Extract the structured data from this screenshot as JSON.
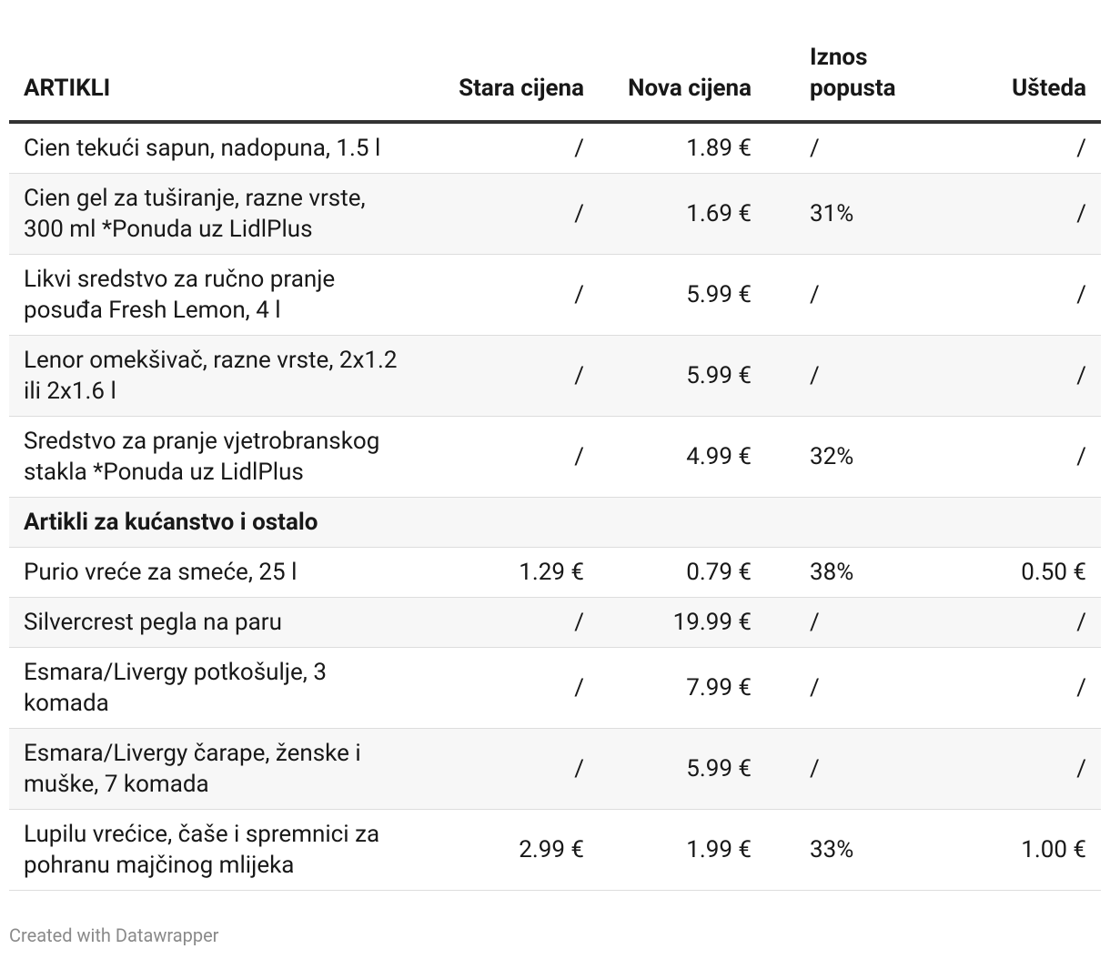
{
  "table": {
    "header": [
      "ARTIKLI",
      "Stara cijena",
      "Nova cijena",
      "Iznos popusta",
      "Ušteda"
    ],
    "rows": [
      [
        "Cien tekući sapun, nadopuna, 1.5 l",
        "/",
        "1.89 €",
        "/",
        "/"
      ],
      [
        "Cien gel za tuširanje, razne vrste, 300 ml *Ponuda uz LidlPlus",
        "/",
        "1.69 €",
        "31%",
        "/"
      ],
      [
        "Likvi sredstvo za ručno pranje posuđa Fresh Lemon, 4 l",
        "/",
        "5.99 €",
        "/",
        "/"
      ],
      [
        "Lenor omekšivač, razne vrste, 2x1.2 ili 2x1.6 l",
        "/",
        "5.99 €",
        "/",
        "/"
      ],
      [
        "Sredstvo za pranje vjetrobranskog stakla *Ponuda uz LidlPlus",
        "/",
        "4.99 €",
        "32%",
        "/"
      ],
      [
        "Artikli za kućanstvo i ostalo"
      ],
      [
        "Purio vreće za smeće, 25 l",
        "1.29 €",
        "0.79 €",
        "38%",
        "0.50 €"
      ],
      [
        "Silvercrest pegla na paru",
        "/",
        "19.99 €",
        "/",
        "/"
      ],
      [
        "Esmara/Livergy potkošulje, 3 komada",
        "/",
        "7.99 €",
        "/",
        "/"
      ],
      [
        "Esmara/Livergy čarape, ženske i muške, 7 komada",
        "/",
        "5.99 €",
        "/",
        "/"
      ],
      [
        "Lupilu vrećice, čaše i spremnici za pohranu majčinog mlijeka",
        "2.99 €",
        "1.99 €",
        "33%",
        "1.00 €"
      ]
    ]
  },
  "footer": "Created with Datawrapper"
}
